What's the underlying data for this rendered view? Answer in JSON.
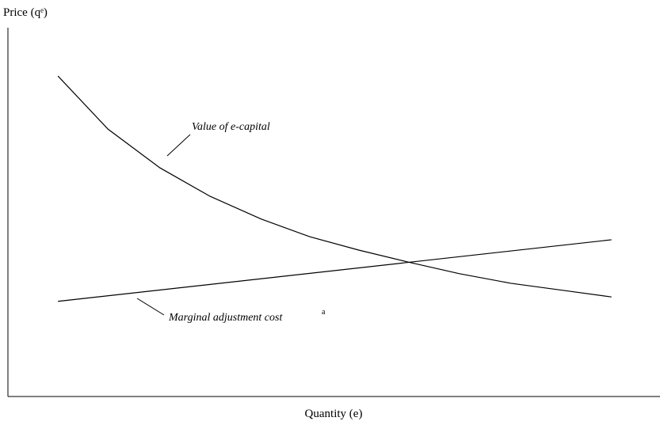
{
  "chart_data": {
    "type": "line",
    "xlabel": "Quantity (e)",
    "ylabel": "Price (qᵉ)",
    "xlim": [
      0,
      100
    ],
    "ylim": [
      0,
      100
    ],
    "series": [
      {
        "name": "Value of e-capital",
        "color": "#000000",
        "x": [
          7.7,
          15.4,
          23.4,
          31.1,
          39.0,
          46.5,
          54.0,
          61.5,
          69.5,
          77.4,
          85.4,
          92.9
        ],
        "values": [
          86.9,
          72.5,
          62.0,
          54.3,
          48.1,
          43.3,
          39.7,
          36.5,
          33.3,
          30.7,
          28.8,
          27.0
        ]
      },
      {
        "name": "Marginal adjustment cost",
        "note_mark": "a",
        "color": "#000000",
        "x": [
          7.7,
          92.9
        ],
        "values": [
          25.8,
          42.5
        ]
      }
    ]
  }
}
